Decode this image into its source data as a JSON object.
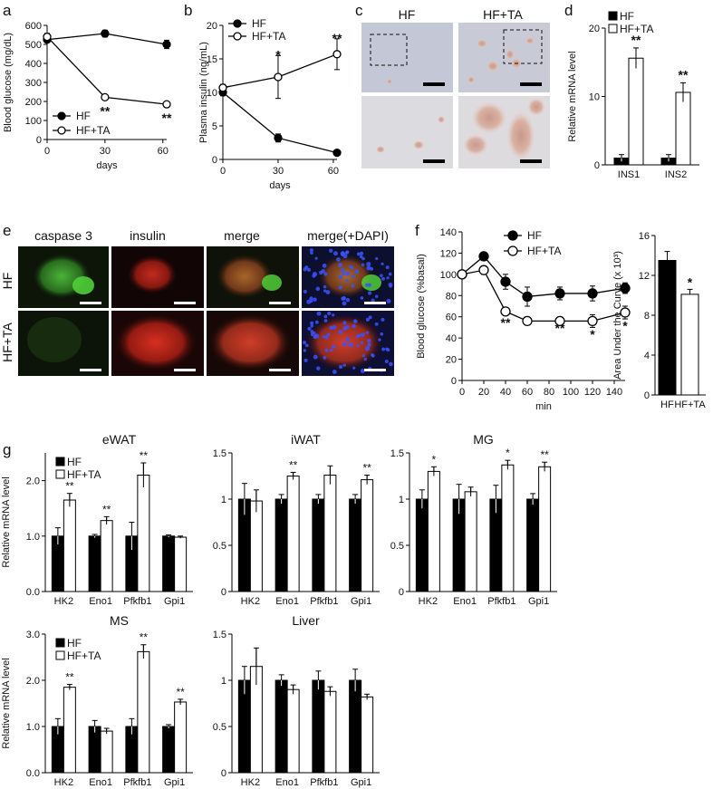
{
  "panels": {
    "a": {
      "label": "a",
      "type": "line",
      "xlabel": "days",
      "ylabel": "Blood glucose (mg/dL)",
      "xticks": [
        0,
        30,
        60
      ],
      "yticks": [
        0,
        100,
        200,
        300,
        400,
        500,
        600
      ],
      "xlim": [
        0,
        62
      ],
      "ylim": [
        0,
        600
      ],
      "series": [
        {
          "name": "HF",
          "marker": "filled",
          "x": [
            0,
            30,
            62
          ],
          "y": [
            525,
            557,
            500
          ],
          "err": [
            15,
            18,
            22
          ]
        },
        {
          "name": "HF+TA",
          "marker": "open",
          "x": [
            0,
            30,
            62
          ],
          "y": [
            540,
            222,
            185
          ],
          "err": [
            18,
            8,
            8
          ]
        }
      ],
      "annotations": [
        {
          "x": 30,
          "y": 222,
          "text": "**"
        },
        {
          "x": 62,
          "y": 185,
          "text": "**"
        }
      ]
    },
    "b": {
      "label": "b",
      "type": "line",
      "xlabel": "days",
      "ylabel": "Plasma insulin (ng/mL)",
      "xticks": [
        0,
        30,
        60
      ],
      "yticks": [
        0,
        5,
        10,
        15,
        20
      ],
      "xlim": [
        0,
        62
      ],
      "ylim": [
        0,
        20
      ],
      "series": [
        {
          "name": "HF",
          "marker": "filled",
          "x": [
            0,
            30,
            62
          ],
          "y": [
            10,
            3.2,
            1.0
          ],
          "err": [
            0.5,
            0.6,
            0.2
          ]
        },
        {
          "name": "HF+TA",
          "marker": "open",
          "x": [
            0,
            30,
            62
          ],
          "y": [
            10.7,
            12.3,
            15.7
          ],
          "err": [
            0.5,
            3.2,
            2.3
          ]
        }
      ],
      "annotations": [
        {
          "x": 30,
          "y": 15.5,
          "text": "*"
        },
        {
          "x": 62,
          "y": 18,
          "text": "**"
        }
      ]
    },
    "c": {
      "label": "c",
      "cols": [
        "HF",
        "HF+TA"
      ]
    },
    "d": {
      "label": "d",
      "type": "bar",
      "ylabel": "Relative mRNA level",
      "categories": [
        "INS1",
        "INS2"
      ],
      "yticks": [
        0,
        10,
        20
      ],
      "ylim": [
        0,
        20
      ],
      "series": [
        {
          "name": "HF",
          "fill": "black",
          "values": [
            1.0,
            1.0
          ],
          "err": [
            0.5,
            0.5
          ]
        },
        {
          "name": "HF+TA",
          "fill": "white",
          "values": [
            15.6,
            10.6
          ],
          "err": [
            1.5,
            1.4
          ]
        }
      ],
      "annotations": [
        "**",
        "**"
      ]
    },
    "e": {
      "label": "e",
      "cols": [
        "caspase 3",
        "insulin",
        "merge",
        "merge(+DAPI)"
      ],
      "rows": [
        "HF",
        "HF+TA"
      ]
    },
    "f": {
      "label": "f",
      "type": "line",
      "xlabel": "min",
      "ylabel": "Blood glucose (%basal)",
      "xticks": [
        0,
        20,
        40,
        60,
        80,
        100,
        120,
        140
      ],
      "yticks": [
        0,
        20,
        40,
        60,
        80,
        100,
        120,
        140
      ],
      "xlim": [
        0,
        150
      ],
      "ylim": [
        0,
        140
      ],
      "series": [
        {
          "name": "HF",
          "marker": "filled",
          "x": [
            0,
            20,
            40,
            60,
            90,
            120,
            150
          ],
          "y": [
            100,
            117,
            93,
            79,
            82,
            82,
            87
          ],
          "err": [
            0,
            3,
            7,
            9,
            6,
            7,
            5
          ]
        },
        {
          "name": "HF+TA",
          "marker": "open",
          "x": [
            0,
            20,
            40,
            60,
            90,
            120,
            150
          ],
          "y": [
            100,
            104,
            65,
            56,
            56,
            56,
            64
          ],
          "err": [
            0,
            4,
            3,
            3,
            2,
            6,
            6
          ]
        }
      ],
      "annotations": [
        {
          "x": 40,
          "y": 57,
          "text": "**"
        },
        {
          "x": 90,
          "y": 52,
          "text": "**"
        },
        {
          "x": 120,
          "y": 46,
          "text": "*"
        },
        {
          "x": 150,
          "y": 54,
          "text": "*"
        }
      ]
    },
    "f2": {
      "type": "bar",
      "ylabel": "Area Under the Curve (x 10³)",
      "categories": [
        "HF",
        "HF+TA"
      ],
      "values": [
        13.5,
        10.1
      ],
      "err": [
        0.9,
        0.5
      ],
      "fills": [
        "black",
        "white"
      ],
      "yticks": [
        0,
        4,
        8,
        12,
        16
      ],
      "ylim": [
        0,
        16
      ],
      "annotations": [
        "",
        "*"
      ]
    },
    "g_label": "g",
    "g": [
      {
        "title": "eWAT",
        "ylabel": "Relative mRNA level",
        "categories": [
          "HK2",
          "Eno1",
          "Pfkfb1",
          "Gpi1"
        ],
        "yticks": [
          0.0,
          1.0,
          2.0
        ],
        "ylim": [
          0,
          2.5
        ],
        "ytick_format": 1,
        "HF": [
          1.0,
          1.0,
          1.0,
          1.0
        ],
        "HF_err": [
          0.15,
          0.03,
          0.25,
          0.02
        ],
        "HFTA": [
          1.65,
          1.28,
          2.1,
          0.98
        ],
        "HFTA_err": [
          0.12,
          0.07,
          0.22,
          0.02
        ],
        "stars": [
          "**",
          "**",
          "**",
          ""
        ],
        "legend": true
      },
      {
        "title": "iWAT",
        "categories": [
          "HK2",
          "Eno1",
          "Pfkfb1",
          "Gpi1"
        ],
        "yticks": [
          0,
          0.5,
          1,
          1.5
        ],
        "ylim": [
          0,
          1.5
        ],
        "ytick_format": -1,
        "HF": [
          1.0,
          1.0,
          1.0,
          1.0
        ],
        "HF_err": [
          0.17,
          0.05,
          0.05,
          0.05
        ],
        "HFTA": [
          0.98,
          1.25,
          1.26,
          1.21
        ],
        "HFTA_err": [
          0.12,
          0.04,
          0.1,
          0.05
        ],
        "stars": [
          "",
          "**",
          "",
          "**"
        ],
        "legend": false
      },
      {
        "title": "MG",
        "categories": [
          "HK2",
          "Eno1",
          "Pfkfb1",
          "Gpi1"
        ],
        "yticks": [
          0,
          0.5,
          1,
          1.5
        ],
        "ylim": [
          0,
          1.5
        ],
        "ytick_format": -1,
        "HF": [
          1.0,
          1.0,
          1.0,
          1.0
        ],
        "HF_err": [
          0.1,
          0.16,
          0.15,
          0.06
        ],
        "HFTA": [
          1.3,
          1.08,
          1.37,
          1.35
        ],
        "HFTA_err": [
          0.05,
          0.05,
          0.05,
          0.05
        ],
        "stars": [
          "*",
          "",
          "*",
          "**"
        ],
        "legend": false
      },
      {
        "title": "MS",
        "ylabel": "Relative mRNA level",
        "categories": [
          "HK2",
          "Eno1",
          "Pfkfb1",
          "Gpi1"
        ],
        "yticks": [
          0.0,
          1.0,
          2.0,
          3.0
        ],
        "ylim": [
          0,
          3.0
        ],
        "ytick_format": 1,
        "HF": [
          1.0,
          1.0,
          1.0,
          1.0
        ],
        "HF_err": [
          0.17,
          0.13,
          0.17,
          0.04
        ],
        "HFTA": [
          1.85,
          0.9,
          2.62,
          1.53
        ],
        "HFTA_err": [
          0.06,
          0.06,
          0.15,
          0.06
        ],
        "stars": [
          "**",
          "",
          "**",
          "**"
        ],
        "legend": true
      },
      {
        "title": "Liver",
        "categories": [
          "HK2",
          "Eno1",
          "Pfkfb1",
          "Gpi1"
        ],
        "yticks": [
          0,
          0.5,
          1,
          1.5
        ],
        "ylim": [
          0,
          1.5
        ],
        "ytick_format": -1,
        "HF": [
          1.0,
          1.0,
          1.0,
          1.0
        ],
        "HF_err": [
          0.15,
          0.06,
          0.1,
          0.12
        ],
        "HFTA": [
          1.15,
          0.9,
          0.88,
          0.82
        ],
        "HFTA_err": [
          0.2,
          0.05,
          0.05,
          0.03
        ],
        "stars": [
          "",
          "",
          "",
          ""
        ],
        "legend": false
      }
    ]
  }
}
